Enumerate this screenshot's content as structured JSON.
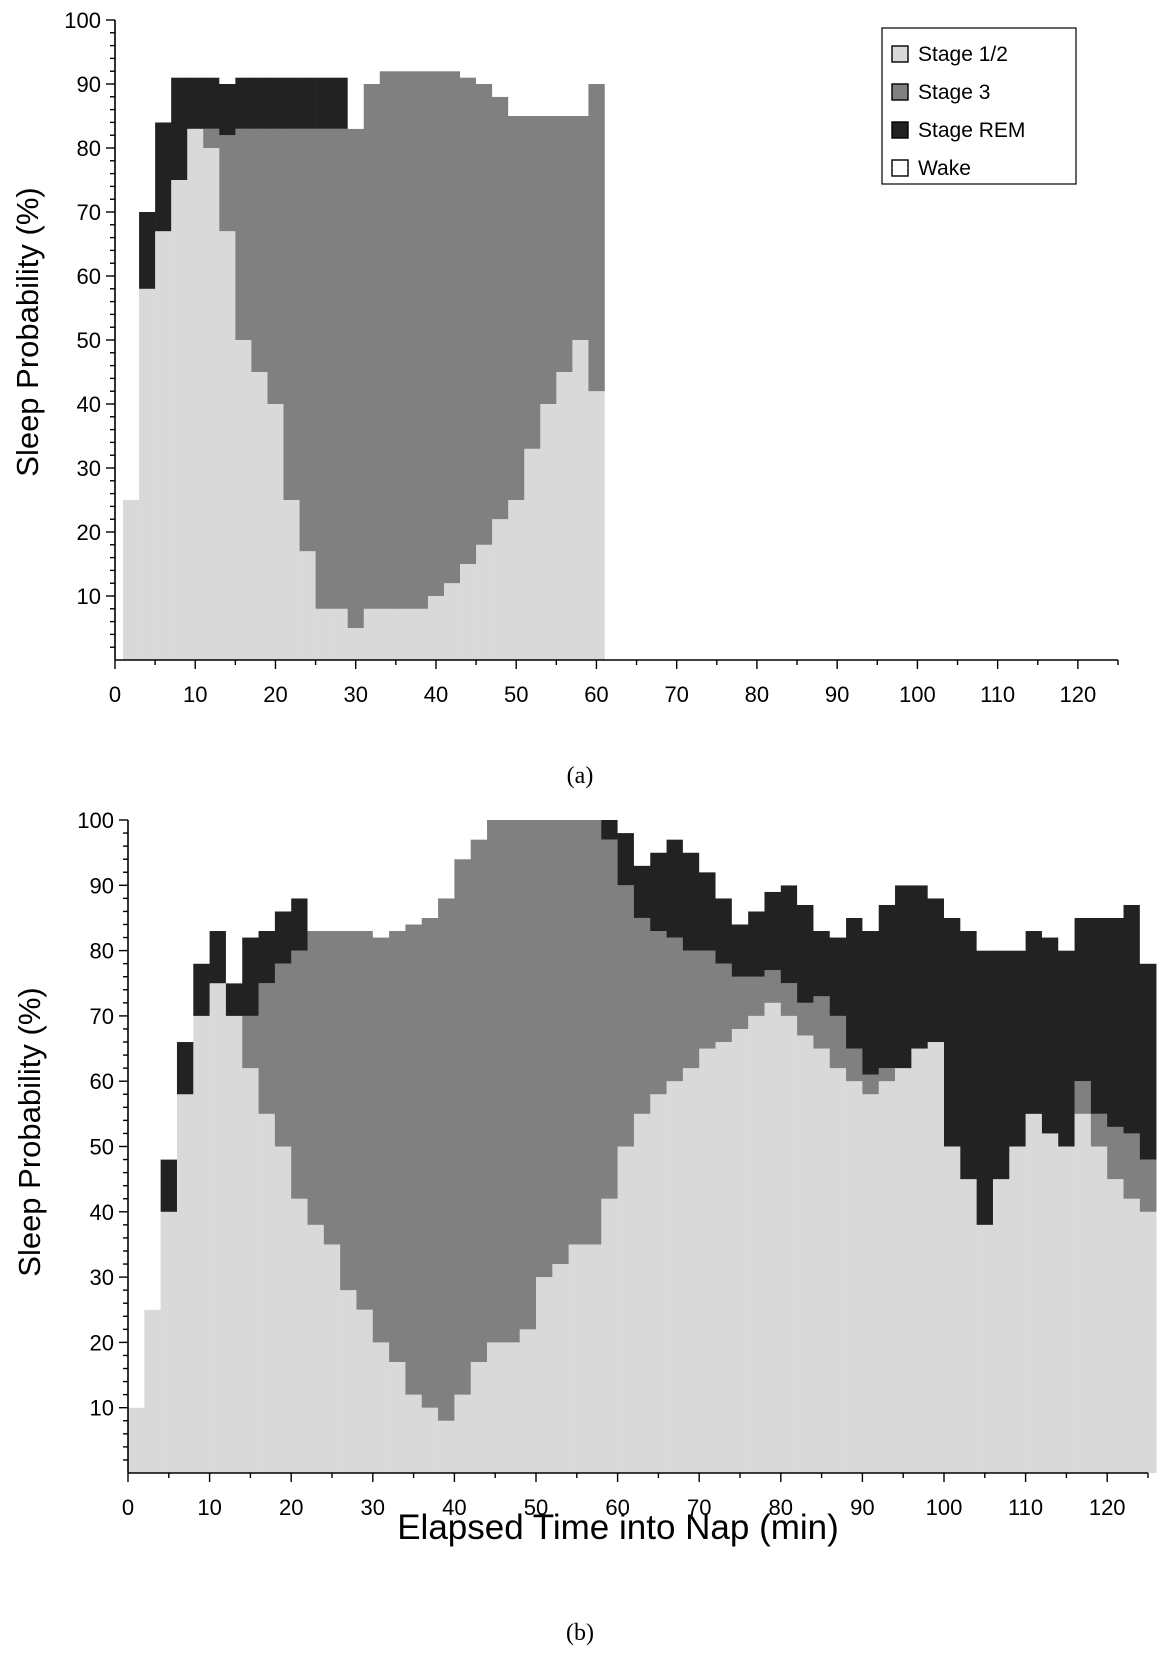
{
  "figure": {
    "captions": [
      "(a)",
      "(b)"
    ]
  },
  "colors": {
    "Stage 1/2": "#d9d9d9",
    "Stage 3": "#808080",
    "Stage REM": "#222222",
    "Wake": "#ffffff"
  },
  "chart_data": [
    {
      "type": "area",
      "panel": "(a)",
      "title": "",
      "xlabel": "",
      "ylabel": "Sleep Probability (%)",
      "xlim": [
        0,
        125
      ],
      "ylim": [
        0,
        100
      ],
      "x_ticks": [
        0,
        10,
        20,
        30,
        40,
        50,
        60,
        70,
        80,
        90,
        100,
        110,
        120
      ],
      "y_ticks": [
        10,
        20,
        30,
        40,
        50,
        60,
        70,
        80,
        90,
        100
      ],
      "grid": false,
      "legend": {
        "position": "top-right",
        "entries": [
          "Stage 1/2",
          "Stage 3",
          "Stage REM",
          "Wake"
        ]
      },
      "stacking_order": [
        "Stage 1/2",
        "Stage 3",
        "Stage REM",
        "Wake"
      ],
      "x": [
        2,
        4,
        6,
        8,
        10,
        12,
        14,
        16,
        18,
        20,
        22,
        24,
        26,
        28,
        30,
        32,
        34,
        36,
        38,
        40,
        42,
        44,
        46,
        48,
        50,
        52,
        54,
        56,
        58,
        60
      ],
      "series": [
        {
          "name": "Stage 1/2",
          "values": [
            25,
            58,
            67,
            75,
            83,
            80,
            67,
            50,
            45,
            40,
            25,
            17,
            8,
            8,
            5,
            8,
            8,
            8,
            8,
            10,
            12,
            15,
            18,
            22,
            25,
            33,
            40,
            45,
            50,
            42
          ]
        },
        {
          "name": "Stage 3",
          "values": [
            0,
            0,
            0,
            0,
            0,
            3,
            15,
            33,
            38,
            43,
            58,
            66,
            75,
            75,
            78,
            82,
            84,
            84,
            84,
            82,
            80,
            76,
            72,
            66,
            60,
            52,
            45,
            40,
            35,
            48
          ]
        },
        {
          "name": "Stage REM",
          "values": [
            0,
            12,
            17,
            16,
            8,
            8,
            8,
            8,
            8,
            8,
            8,
            8,
            8,
            8,
            0,
            0,
            0,
            0,
            0,
            0,
            0,
            0,
            0,
            0,
            0,
            0,
            0,
            0,
            0,
            0
          ]
        },
        {
          "name": "Wake",
          "values": [
            75,
            30,
            16,
            9,
            9,
            9,
            10,
            9,
            9,
            9,
            9,
            9,
            9,
            9,
            17,
            10,
            8,
            8,
            8,
            8,
            8,
            9,
            10,
            12,
            15,
            15,
            15,
            15,
            15,
            10
          ]
        }
      ]
    },
    {
      "type": "area",
      "panel": "(b)",
      "title": "",
      "xlabel": "Elapsed Time into Nap (min)",
      "ylabel": "Sleep Probability (%)",
      "xlim": [
        0,
        125
      ],
      "ylim": [
        0,
        100
      ],
      "x_ticks": [
        0,
        10,
        20,
        30,
        40,
        50,
        60,
        70,
        80,
        90,
        100,
        110,
        120
      ],
      "y_ticks": [
        10,
        20,
        30,
        40,
        50,
        60,
        70,
        80,
        90,
        100
      ],
      "grid": false,
      "legend": {
        "position": "none",
        "entries": []
      },
      "stacking_order": [
        "Stage 1/2",
        "Stage 3",
        "Stage REM",
        "Wake"
      ],
      "x": [
        1,
        3,
        5,
        7,
        9,
        11,
        13,
        15,
        17,
        19,
        21,
        23,
        25,
        27,
        29,
        31,
        33,
        35,
        37,
        39,
        41,
        43,
        45,
        47,
        49,
        51,
        53,
        55,
        57,
        59,
        61,
        63,
        65,
        67,
        69,
        71,
        73,
        75,
        77,
        79,
        81,
        83,
        85,
        87,
        89,
        91,
        93,
        95,
        97,
        99,
        101,
        103,
        105,
        107,
        109,
        111,
        113,
        115,
        117,
        119,
        121,
        123,
        125
      ],
      "series": [
        {
          "name": "Stage 1/2",
          "values": [
            10,
            25,
            40,
            58,
            70,
            75,
            70,
            62,
            55,
            50,
            42,
            38,
            35,
            28,
            25,
            20,
            17,
            12,
            10,
            8,
            12,
            17,
            20,
            20,
            22,
            30,
            32,
            35,
            35,
            42,
            50,
            55,
            58,
            60,
            62,
            65,
            66,
            68,
            70,
            72,
            70,
            67,
            65,
            62,
            60,
            58,
            60,
            62,
            65,
            66,
            50,
            45,
            38,
            45,
            50,
            55,
            52,
            50,
            55,
            50,
            45,
            42,
            40
          ]
        },
        {
          "name": "Stage 3",
          "values": [
            0,
            0,
            0,
            0,
            0,
            0,
            0,
            8,
            20,
            28,
            38,
            45,
            48,
            55,
            58,
            62,
            66,
            72,
            75,
            80,
            82,
            80,
            80,
            82,
            82,
            78,
            75,
            72,
            70,
            55,
            40,
            30,
            25,
            22,
            18,
            15,
            12,
            8,
            6,
            5,
            5,
            5,
            8,
            8,
            5,
            3,
            2,
            0,
            0,
            0,
            0,
            0,
            0,
            0,
            0,
            0,
            0,
            0,
            5,
            5,
            8,
            10,
            8
          ]
        },
        {
          "name": "Stage REM",
          "values": [
            0,
            0,
            8,
            8,
            8,
            8,
            5,
            12,
            8,
            8,
            8,
            0,
            0,
            0,
            0,
            0,
            0,
            0,
            0,
            0,
            0,
            0,
            0,
            0,
            0,
            0,
            0,
            0,
            0,
            5,
            8,
            8,
            12,
            15,
            15,
            12,
            10,
            8,
            10,
            12,
            15,
            15,
            10,
            12,
            20,
            22,
            25,
            28,
            25,
            22,
            35,
            38,
            42,
            35,
            30,
            28,
            30,
            30,
            25,
            30,
            32,
            35,
            30
          ]
        },
        {
          "name": "Wake",
          "values": [
            90,
            75,
            52,
            34,
            22,
            17,
            25,
            18,
            17,
            14,
            12,
            17,
            17,
            17,
            17,
            18,
            17,
            16,
            15,
            12,
            6,
            3,
            0,
            0,
            0,
            0,
            0,
            0,
            0,
            0,
            2,
            7,
            5,
            3,
            5,
            8,
            12,
            16,
            14,
            11,
            10,
            13,
            17,
            18,
            15,
            17,
            13,
            10,
            10,
            12,
            15,
            17,
            20,
            20,
            20,
            17,
            18,
            20,
            15,
            15,
            15,
            13,
            22
          ]
        }
      ]
    }
  ]
}
